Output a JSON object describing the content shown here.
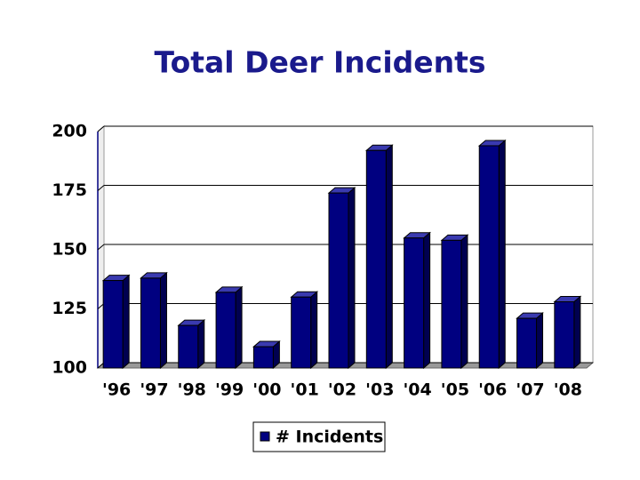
{
  "chart_data": {
    "type": "bar3d",
    "title": "Total Deer Incidents",
    "categories": [
      "'96",
      "'97",
      "'98",
      "'99",
      "'00",
      "'01",
      "'02",
      "'03",
      "'04",
      "'05",
      "'06",
      "'07",
      "'08"
    ],
    "series": [
      {
        "name": "# Incidents",
        "color": "#000080",
        "values": [
          137,
          138,
          118,
          132,
          109,
          130,
          174,
          192,
          155,
          154,
          194,
          121,
          128
        ]
      }
    ],
    "ylim": [
      100,
      200
    ],
    "yticks": [
      100,
      125,
      150,
      175,
      200
    ],
    "grid": true,
    "legend": "bottom"
  }
}
